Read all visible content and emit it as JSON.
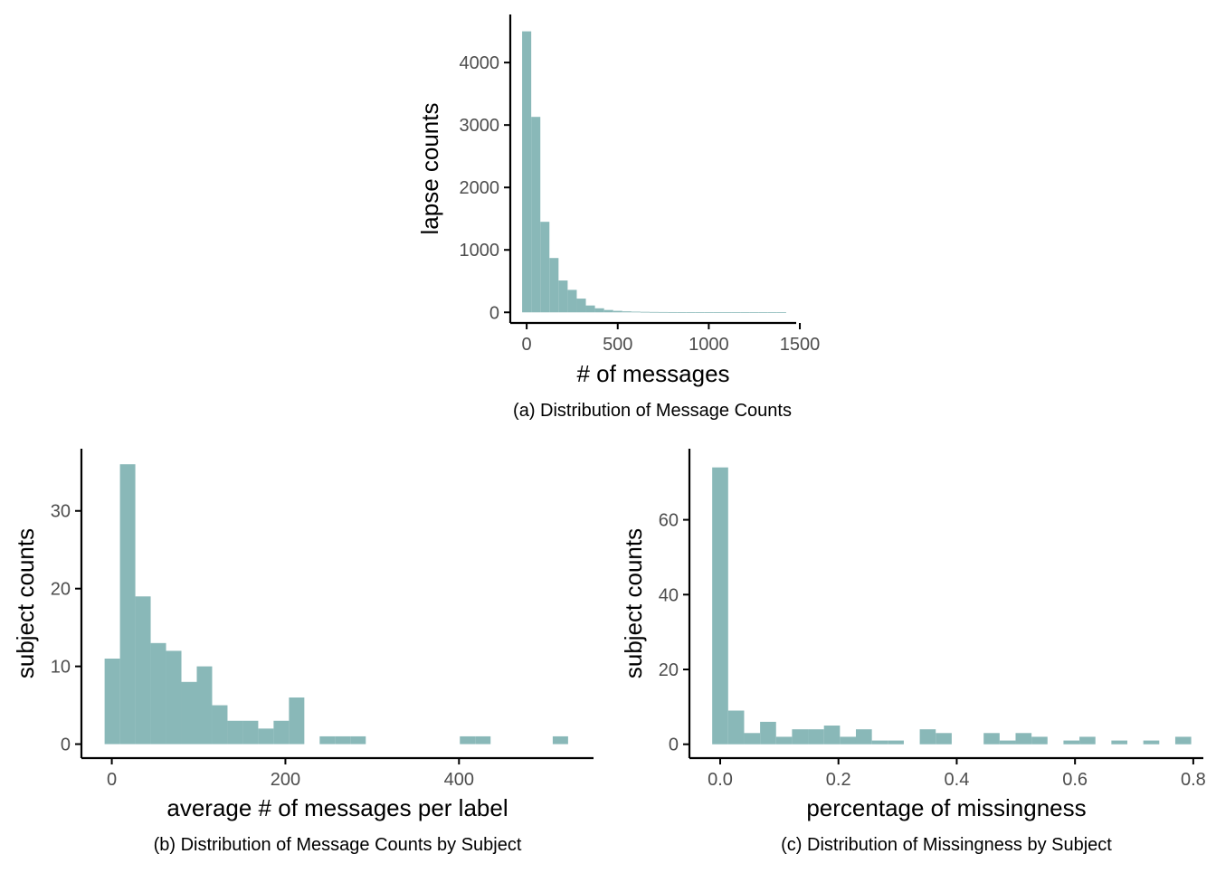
{
  "chart_data": [
    {
      "type": "bar",
      "caption": "(a) Distribution of Message Counts",
      "xlabel": "# of messages",
      "ylabel": "lapse counts",
      "xlim": [
        -90,
        1480
      ],
      "ylim": [
        -170,
        4770
      ],
      "xticks": [
        0,
        500,
        1000,
        1500
      ],
      "xtick_labels": [
        "0",
        "500",
        "1000",
        "1500"
      ],
      "yticks": [
        0,
        1000,
        2000,
        3000,
        4000
      ],
      "ytick_labels": [
        "0",
        "1000",
        "2000",
        "3000",
        "4000"
      ],
      "bins": [
        {
          "x0": -25,
          "x1": 25,
          "count": 4500
        },
        {
          "x0": 25,
          "x1": 75,
          "count": 3130
        },
        {
          "x0": 75,
          "x1": 125,
          "count": 1450
        },
        {
          "x0": 125,
          "x1": 175,
          "count": 870
        },
        {
          "x0": 175,
          "x1": 225,
          "count": 510
        },
        {
          "x0": 225,
          "x1": 275,
          "count": 360
        },
        {
          "x0": 275,
          "x1": 325,
          "count": 220
        },
        {
          "x0": 325,
          "x1": 375,
          "count": 110
        },
        {
          "x0": 375,
          "x1": 425,
          "count": 65
        },
        {
          "x0": 425,
          "x1": 475,
          "count": 38
        },
        {
          "x0": 475,
          "x1": 525,
          "count": 24
        },
        {
          "x0": 525,
          "x1": 575,
          "count": 16
        },
        {
          "x0": 575,
          "x1": 625,
          "count": 11
        },
        {
          "x0": 625,
          "x1": 675,
          "count": 8
        },
        {
          "x0": 675,
          "x1": 725,
          "count": 6
        },
        {
          "x0": 725,
          "x1": 775,
          "count": 5
        },
        {
          "x0": 775,
          "x1": 825,
          "count": 4
        },
        {
          "x0": 825,
          "x1": 875,
          "count": 3
        },
        {
          "x0": 875,
          "x1": 925,
          "count": 3
        },
        {
          "x0": 925,
          "x1": 975,
          "count": 2
        },
        {
          "x0": 975,
          "x1": 1025,
          "count": 2
        },
        {
          "x0": 1025,
          "x1": 1075,
          "count": 2
        },
        {
          "x0": 1075,
          "x1": 1125,
          "count": 1
        },
        {
          "x0": 1125,
          "x1": 1175,
          "count": 1
        },
        {
          "x0": 1175,
          "x1": 1225,
          "count": 1
        },
        {
          "x0": 1225,
          "x1": 1275,
          "count": 1
        },
        {
          "x0": 1275,
          "x1": 1325,
          "count": 1
        },
        {
          "x0": 1325,
          "x1": 1375,
          "count": 1
        },
        {
          "x0": 1375,
          "x1": 1425,
          "count": 1
        }
      ]
    },
    {
      "type": "bar",
      "caption": "(b) Distribution of Message Counts by Subject",
      "xlabel": "average # of messages per label",
      "ylabel": "subject counts",
      "xlim": [
        -35,
        555
      ],
      "ylim": [
        -1.8,
        38
      ],
      "xticks": [
        0,
        200,
        400
      ],
      "xtick_labels": [
        "0",
        "200",
        "400"
      ],
      "yticks": [
        0,
        10,
        20,
        30
      ],
      "ytick_labels": [
        "0",
        "10",
        "20",
        "30"
      ],
      "bins": [
        {
          "x0": -8.3,
          "x1": 9.4,
          "count": 11
        },
        {
          "x0": 9.4,
          "x1": 27.1,
          "count": 36
        },
        {
          "x0": 27.1,
          "x1": 44.8,
          "count": 19
        },
        {
          "x0": 44.8,
          "x1": 62.5,
          "count": 13
        },
        {
          "x0": 62.5,
          "x1": 80.2,
          "count": 12
        },
        {
          "x0": 80.2,
          "x1": 97.9,
          "count": 8
        },
        {
          "x0": 97.9,
          "x1": 115.6,
          "count": 10
        },
        {
          "x0": 115.6,
          "x1": 133.3,
          "count": 5
        },
        {
          "x0": 133.3,
          "x1": 151.0,
          "count": 3
        },
        {
          "x0": 151.0,
          "x1": 168.7,
          "count": 3
        },
        {
          "x0": 168.7,
          "x1": 186.4,
          "count": 2
        },
        {
          "x0": 186.4,
          "x1": 204.1,
          "count": 3
        },
        {
          "x0": 204.1,
          "x1": 221.8,
          "count": 6
        },
        {
          "x0": 221.8,
          "x1": 239.5,
          "count": 0
        },
        {
          "x0": 239.5,
          "x1": 257.2,
          "count": 1
        },
        {
          "x0": 257.2,
          "x1": 274.9,
          "count": 1
        },
        {
          "x0": 274.9,
          "x1": 292.6,
          "count": 1
        },
        {
          "x0": 401,
          "x1": 418.7,
          "count": 1
        },
        {
          "x0": 418.7,
          "x1": 436.4,
          "count": 1
        },
        {
          "x0": 508,
          "x1": 525.7,
          "count": 1
        }
      ]
    },
    {
      "type": "bar",
      "caption": "(c) Distribution of Missingness by Subject",
      "xlabel": "percentage of missingness",
      "ylabel": "subject counts",
      "xlim": [
        -0.052,
        0.817
      ],
      "ylim": [
        -3.7,
        79
      ],
      "xticks": [
        0.0,
        0.2,
        0.4,
        0.6,
        0.8
      ],
      "xtick_labels": [
        "0.0",
        "0.2",
        "0.4",
        "0.6",
        "0.8"
      ],
      "yticks": [
        0,
        20,
        40,
        60
      ],
      "ytick_labels": [
        "0",
        "20",
        "40",
        "60"
      ],
      "bins": [
        {
          "x0": -0.0135,
          "x1": 0.0135,
          "count": 74
        },
        {
          "x0": 0.0135,
          "x1": 0.0405,
          "count": 9
        },
        {
          "x0": 0.0405,
          "x1": 0.0675,
          "count": 3
        },
        {
          "x0": 0.0675,
          "x1": 0.0945,
          "count": 6
        },
        {
          "x0": 0.0945,
          "x1": 0.1215,
          "count": 2
        },
        {
          "x0": 0.1215,
          "x1": 0.1485,
          "count": 4
        },
        {
          "x0": 0.1485,
          "x1": 0.1755,
          "count": 4
        },
        {
          "x0": 0.1755,
          "x1": 0.2025,
          "count": 5
        },
        {
          "x0": 0.2025,
          "x1": 0.2295,
          "count": 2
        },
        {
          "x0": 0.2295,
          "x1": 0.2565,
          "count": 4
        },
        {
          "x0": 0.2565,
          "x1": 0.2835,
          "count": 1
        },
        {
          "x0": 0.2835,
          "x1": 0.3105,
          "count": 1
        },
        {
          "x0": 0.3375,
          "x1": 0.3645,
          "count": 4
        },
        {
          "x0": 0.3645,
          "x1": 0.3915,
          "count": 3
        },
        {
          "x0": 0.4455,
          "x1": 0.4725,
          "count": 3
        },
        {
          "x0": 0.4725,
          "x1": 0.4995,
          "count": 1
        },
        {
          "x0": 0.4995,
          "x1": 0.5265,
          "count": 3
        },
        {
          "x0": 0.5265,
          "x1": 0.5535,
          "count": 2
        },
        {
          "x0": 0.5805,
          "x1": 0.6075,
          "count": 1
        },
        {
          "x0": 0.6075,
          "x1": 0.6345,
          "count": 2
        },
        {
          "x0": 0.6615,
          "x1": 0.6885,
          "count": 1
        },
        {
          "x0": 0.7155,
          "x1": 0.7425,
          "count": 1
        },
        {
          "x0": 0.7695,
          "x1": 0.7965,
          "count": 2
        }
      ]
    }
  ],
  "colors": {
    "bar_fill": "#89b8b8",
    "axis": "#000000",
    "tick_label": "#4d4d4d"
  }
}
